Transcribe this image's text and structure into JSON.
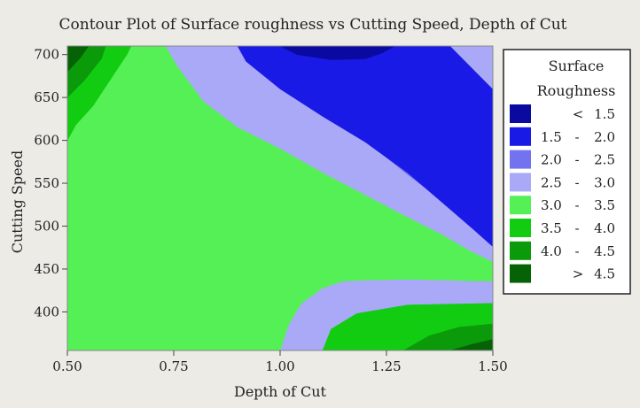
{
  "chart_data": {
    "type": "contour",
    "title": "Contour Plot of Surface roughness vs Cutting Speed, Depth of Cut",
    "xlabel": "Depth of Cut",
    "ylabel": "Cutting Speed",
    "xlim": [
      0.5,
      1.5
    ],
    "ylim": [
      355,
      710
    ],
    "x_ticks": [
      0.5,
      0.75,
      1.0,
      1.25,
      1.5
    ],
    "x_tick_labels": [
      "0.50",
      "0.75",
      "1.00",
      "1.25",
      "1.50"
    ],
    "y_ticks": [
      400,
      450,
      500,
      550,
      600,
      650,
      700
    ],
    "y_tick_labels": [
      "400",
      "450",
      "500",
      "550",
      "600",
      "650",
      "700"
    ],
    "grid": false,
    "legend": {
      "placement": "right",
      "title_lines": [
        "Surface",
        "Roughness"
      ],
      "entries": [
        {
          "low": "<",
          "high": "1.5",
          "color": "#0a0aa0"
        },
        {
          "low": "1.5",
          "sep": "-",
          "high": "2.0",
          "color": "#1a1ae6"
        },
        {
          "low": "2.0",
          "sep": "-",
          "high": "2.5",
          "color": "#7373f0"
        },
        {
          "low": "2.5",
          "sep": "-",
          "high": "3.0",
          "color": "#a9a9f7"
        },
        {
          "low": "3.0",
          "sep": "-",
          "high": "3.5",
          "color": "#55f055"
        },
        {
          "low": "3.5",
          "sep": "-",
          "high": "4.0",
          "color": "#12cc12"
        },
        {
          "low": "4.0",
          "sep": "-",
          "high": "4.5",
          "color": "#0a9a0a"
        },
        {
          "low": ">",
          "high": "4.5",
          "color": "#056305"
        }
      ]
    },
    "regions": [
      {
        "level": "2.5 - 3.0",
        "color": "#a9a9f7",
        "points": [
          [
            0.5,
            355
          ],
          [
            1.5,
            355
          ],
          [
            1.5,
            710
          ],
          [
            0.5,
            710
          ]
        ]
      },
      {
        "level": "3.0 - 3.5",
        "color": "#55f055",
        "points": [
          [
            0.5,
            355
          ],
          [
            0.5,
            520
          ],
          [
            0.56,
            508
          ],
          [
            0.62,
            480
          ],
          [
            0.66,
            440
          ],
          [
            0.7,
            395
          ],
          [
            0.76,
            355
          ]
        ]
      },
      {
        "level": "3.0 - 3.5",
        "color": "#55f055",
        "points": [
          [
            0.5,
            710
          ],
          [
            0.73,
            710
          ],
          [
            0.76,
            685
          ],
          [
            0.82,
            645
          ],
          [
            0.9,
            615
          ],
          [
            1.0,
            590
          ],
          [
            1.1,
            562
          ],
          [
            1.2,
            536
          ],
          [
            1.3,
            510
          ],
          [
            1.38,
            490
          ],
          [
            1.45,
            470
          ],
          [
            1.5,
            458
          ],
          [
            1.5,
            355
          ],
          [
            1.5,
            436
          ],
          [
            1.45,
            436
          ],
          [
            1.4,
            437
          ],
          [
            1.3,
            438
          ],
          [
            1.2,
            437
          ],
          [
            1.15,
            436
          ],
          [
            1.1,
            428
          ],
          [
            1.05,
            410
          ],
          [
            1.02,
            385
          ],
          [
            1.0,
            355
          ],
          [
            0.76,
            355
          ],
          [
            0.7,
            395
          ],
          [
            0.66,
            440
          ],
          [
            0.62,
            480
          ],
          [
            0.56,
            508
          ],
          [
            0.5,
            520
          ]
        ]
      },
      {
        "level": "3.5 - 4.0",
        "color": "#12cc12",
        "points": [
          [
            0.5,
            600
          ],
          [
            0.52,
            618
          ],
          [
            0.56,
            640
          ],
          [
            0.6,
            670
          ],
          [
            0.64,
            700
          ],
          [
            0.65,
            710
          ],
          [
            0.5,
            710
          ]
        ]
      },
      {
        "level": "3.5 - 4.0",
        "color": "#12cc12",
        "points": [
          [
            1.1,
            355
          ],
          [
            1.12,
            380
          ],
          [
            1.18,
            398
          ],
          [
            1.3,
            408
          ],
          [
            1.5,
            410
          ],
          [
            1.5,
            355
          ]
        ]
      },
      {
        "level": "4.0 - 4.5",
        "color": "#0a9a0a",
        "points": [
          [
            0.5,
            650
          ],
          [
            0.54,
            670
          ],
          [
            0.58,
            695
          ],
          [
            0.59,
            710
          ],
          [
            0.5,
            710
          ]
        ]
      },
      {
        "level": "4.0 - 4.5",
        "color": "#0a9a0a",
        "points": [
          [
            1.29,
            355
          ],
          [
            1.35,
            372
          ],
          [
            1.42,
            382
          ],
          [
            1.5,
            386
          ],
          [
            1.5,
            355
          ]
        ]
      },
      {
        "level": "> 4.5",
        "color": "#056305",
        "points": [
          [
            0.5,
            680
          ],
          [
            0.53,
            696
          ],
          [
            0.55,
            710
          ],
          [
            0.5,
            710
          ]
        ]
      },
      {
        "level": "> 4.5",
        "color": "#056305",
        "points": [
          [
            1.4,
            355
          ],
          [
            1.45,
            362
          ],
          [
            1.5,
            368
          ],
          [
            1.5,
            355
          ]
        ]
      },
      {
        "level": "2.0 - 2.5",
        "color": "#7373f0",
        "points": [
          [
            0.97,
            710
          ],
          [
            0.9,
            710
          ],
          [
            0.93,
            690
          ],
          [
            1.0,
            660
          ],
          [
            1.1,
            630
          ],
          [
            1.2,
            600
          ],
          [
            1.3,
            560
          ],
          [
            1.38,
            530
          ],
          [
            1.45,
            500
          ],
          [
            1.5,
            478
          ],
          [
            1.5,
            660
          ],
          [
            1.45,
            680
          ],
          [
            1.4,
            710
          ]
        ]
      },
      {
        "level": "1.5 - 2.0",
        "color": "#1a1ae6",
        "points": [
          [
            0.9,
            710
          ],
          [
            0.92,
            692
          ],
          [
            1.0,
            660
          ],
          [
            1.1,
            628
          ],
          [
            1.2,
            598
          ],
          [
            1.3,
            562
          ],
          [
            1.38,
            528
          ],
          [
            1.45,
            498
          ],
          [
            1.5,
            476
          ],
          [
            1.5,
            660
          ],
          [
            1.44,
            690
          ],
          [
            1.4,
            710
          ]
        ]
      },
      {
        "level": "< 1.5",
        "color": "#0a0aa0",
        "points": [
          [
            1.0,
            710
          ],
          [
            1.04,
            700
          ],
          [
            1.12,
            694
          ],
          [
            1.2,
            695
          ],
          [
            1.24,
            702
          ],
          [
            1.27,
            710
          ]
        ]
      },
      {
        "level": "2.5 - 3.0",
        "color": "#a9a9f7",
        "points": [
          [
            1.4,
            710
          ],
          [
            1.44,
            690
          ],
          [
            1.5,
            660
          ],
          [
            1.5,
            710
          ]
        ]
      }
    ]
  }
}
